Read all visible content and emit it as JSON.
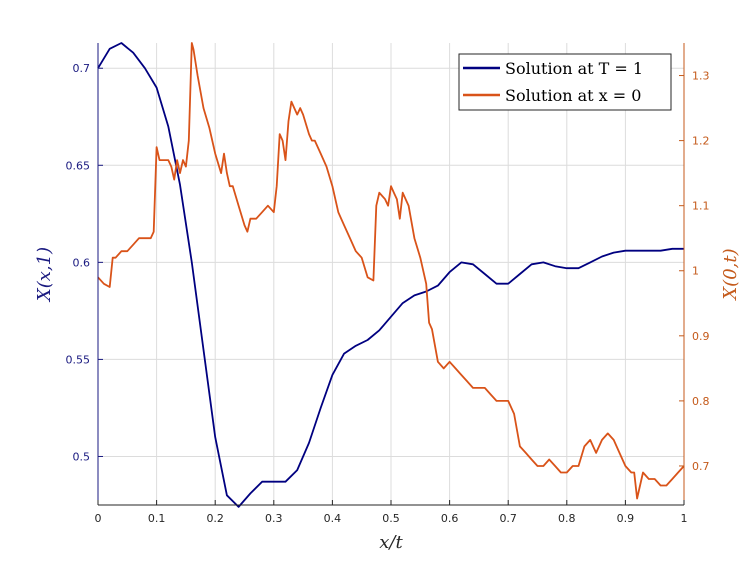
{
  "chart_data": {
    "type": "line",
    "xlabel": "x/t",
    "ylabel_left": "X(x,1)",
    "ylabel_right": "X(0,t)",
    "xlim": [
      0,
      1
    ],
    "ylim_left": [
      0.475,
      0.713
    ],
    "ylim_right": [
      0.64,
      1.35
    ],
    "x_ticks": [
      "0",
      "0.1",
      "0.2",
      "0.3",
      "0.4",
      "0.5",
      "0.6",
      "0.7",
      "0.8",
      "0.9",
      "1"
    ],
    "y_left_ticks": [
      "0.5",
      "0.55",
      "0.6",
      "0.65",
      "0.7"
    ],
    "y_right_ticks": [
      "0.7",
      "0.8",
      "0.9",
      "1",
      "1.1",
      "1.2",
      "1.3"
    ],
    "grid": true,
    "legend_position": "top-right",
    "colors": {
      "left_axis": "#1a1a80",
      "right_axis": "#c45a1b",
      "series1": "#000080",
      "series2": "#d95319"
    },
    "series": [
      {
        "name": "Solution at T = 1",
        "axis": "left",
        "x": [
          0,
          0.02,
          0.04,
          0.06,
          0.08,
          0.1,
          0.12,
          0.14,
          0.16,
          0.18,
          0.2,
          0.22,
          0.24,
          0.26,
          0.28,
          0.3,
          0.32,
          0.34,
          0.36,
          0.38,
          0.4,
          0.42,
          0.44,
          0.46,
          0.48,
          0.5,
          0.52,
          0.54,
          0.56,
          0.58,
          0.6,
          0.62,
          0.64,
          0.66,
          0.68,
          0.7,
          0.72,
          0.74,
          0.76,
          0.78,
          0.8,
          0.82,
          0.84,
          0.86,
          0.88,
          0.9,
          0.92,
          0.94,
          0.96,
          0.98,
          1.0
        ],
        "values": [
          0.7,
          0.71,
          0.713,
          0.708,
          0.7,
          0.69,
          0.67,
          0.64,
          0.6,
          0.555,
          0.51,
          0.48,
          0.474,
          0.481,
          0.487,
          0.487,
          0.487,
          0.493,
          0.507,
          0.525,
          0.542,
          0.553,
          0.557,
          0.56,
          0.565,
          0.572,
          0.579,
          0.583,
          0.585,
          0.588,
          0.595,
          0.6,
          0.599,
          0.594,
          0.589,
          0.589,
          0.594,
          0.599,
          0.6,
          0.598,
          0.597,
          0.597,
          0.6,
          0.603,
          0.605,
          0.606,
          0.606,
          0.606,
          0.606,
          0.607,
          0.607
        ]
      },
      {
        "name": "Solution at x = 0",
        "axis": "right",
        "x": [
          0,
          0.01,
          0.02,
          0.025,
          0.03,
          0.04,
          0.05,
          0.06,
          0.07,
          0.08,
          0.09,
          0.095,
          0.1,
          0.105,
          0.11,
          0.12,
          0.125,
          0.13,
          0.135,
          0.14,
          0.145,
          0.15,
          0.155,
          0.16,
          0.163,
          0.17,
          0.18,
          0.19,
          0.2,
          0.21,
          0.215,
          0.22,
          0.225,
          0.23,
          0.24,
          0.25,
          0.255,
          0.26,
          0.27,
          0.28,
          0.29,
          0.3,
          0.305,
          0.31,
          0.315,
          0.32,
          0.325,
          0.33,
          0.34,
          0.345,
          0.35,
          0.36,
          0.365,
          0.37,
          0.38,
          0.39,
          0.4,
          0.41,
          0.42,
          0.43,
          0.44,
          0.45,
          0.46,
          0.47,
          0.475,
          0.48,
          0.49,
          0.495,
          0.5,
          0.505,
          0.51,
          0.515,
          0.52,
          0.53,
          0.54,
          0.55,
          0.56,
          0.565,
          0.57,
          0.58,
          0.59,
          0.6,
          0.61,
          0.62,
          0.63,
          0.64,
          0.65,
          0.66,
          0.67,
          0.68,
          0.69,
          0.7,
          0.71,
          0.72,
          0.73,
          0.74,
          0.75,
          0.76,
          0.77,
          0.78,
          0.79,
          0.8,
          0.81,
          0.82,
          0.83,
          0.84,
          0.85,
          0.86,
          0.87,
          0.88,
          0.89,
          0.9,
          0.91,
          0.915,
          0.92,
          0.93,
          0.94,
          0.95,
          0.96,
          0.97,
          0.98,
          0.99,
          1.0
        ],
        "values": [
          0.99,
          0.98,
          0.975,
          1.02,
          1.02,
          1.03,
          1.03,
          1.04,
          1.05,
          1.05,
          1.05,
          1.06,
          1.19,
          1.17,
          1.17,
          1.17,
          1.16,
          1.14,
          1.17,
          1.15,
          1.17,
          1.16,
          1.2,
          1.35,
          1.34,
          1.3,
          1.25,
          1.22,
          1.18,
          1.15,
          1.18,
          1.15,
          1.13,
          1.13,
          1.1,
          1.07,
          1.06,
          1.08,
          1.08,
          1.09,
          1.1,
          1.09,
          1.13,
          1.21,
          1.2,
          1.17,
          1.23,
          1.26,
          1.24,
          1.25,
          1.24,
          1.21,
          1.2,
          1.2,
          1.18,
          1.16,
          1.13,
          1.09,
          1.07,
          1.05,
          1.03,
          1.02,
          0.99,
          0.985,
          1.1,
          1.12,
          1.11,
          1.1,
          1.13,
          1.12,
          1.11,
          1.08,
          1.12,
          1.1,
          1.05,
          1.02,
          0.98,
          0.92,
          0.91,
          0.86,
          0.85,
          0.86,
          0.85,
          0.84,
          0.83,
          0.82,
          0.82,
          0.82,
          0.81,
          0.8,
          0.8,
          0.8,
          0.78,
          0.73,
          0.72,
          0.71,
          0.7,
          0.7,
          0.71,
          0.7,
          0.69,
          0.69,
          0.7,
          0.7,
          0.73,
          0.74,
          0.72,
          0.74,
          0.75,
          0.74,
          0.72,
          0.7,
          0.69,
          0.69,
          0.65,
          0.69,
          0.68,
          0.68,
          0.67,
          0.67,
          0.68,
          0.69,
          0.7
        ]
      }
    ]
  }
}
